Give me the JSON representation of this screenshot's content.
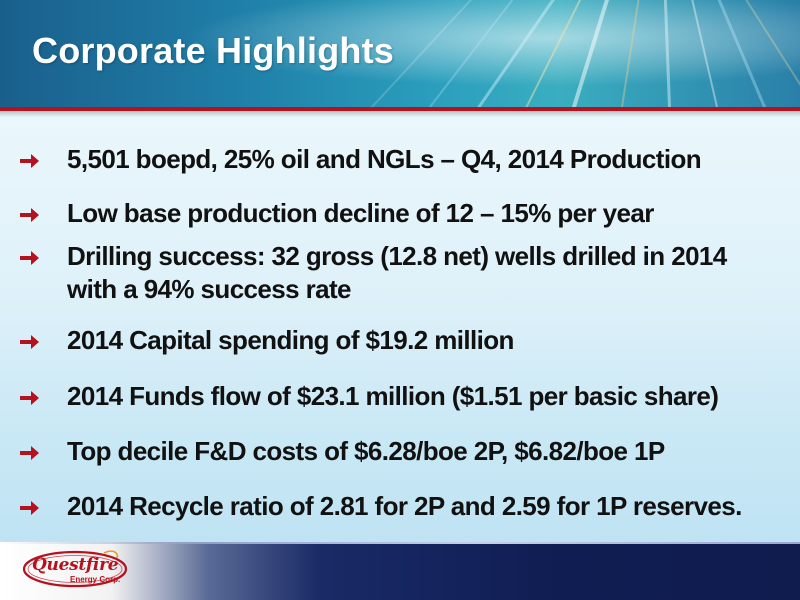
{
  "header": {
    "title": "Corporate Highlights"
  },
  "bullets": [
    {
      "text": "5,501 boepd, 25% oil and NGLs – Q4, 2014 Production"
    },
    {
      "text": "Low base production decline of 12 – 15% per year"
    },
    {
      "text": "Drilling success: 32 gross (12.8 net) wells drilled in 2014 with a 94% success rate"
    },
    {
      "text": "2014 Capital spending of $19.2 million"
    },
    {
      "text": "2014 Funds flow of $23.1 million ($1.51 per basic share)"
    },
    {
      "text": "Top decile  F&D costs  of $6.28/boe 2P, $6.82/boe 1P"
    },
    {
      "text": "2014 Recycle ratio of 2.81 for 2P and 2.59 for 1P reserves."
    }
  ],
  "logo": {
    "name": "Questfire",
    "sub": "Energy Corp."
  },
  "colors": {
    "accent_red": "#b3121e",
    "header_blue": "#1f7fa8",
    "footer_navy": "#0f1d52"
  },
  "icons": {
    "bullet": "right-arrow-icon"
  }
}
